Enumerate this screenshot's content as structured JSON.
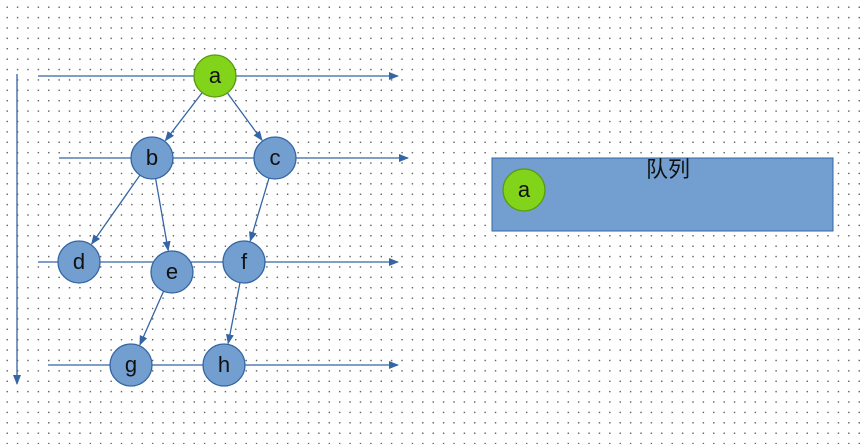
{
  "colors": {
    "node_fill": "#729fcf",
    "node_stroke": "#3465a4",
    "active_fill": "#81d41a",
    "active_stroke": "#5a9a0e",
    "line": "#3465a4",
    "queue_fill": "#729fcf",
    "queue_stroke": "#3465a4"
  },
  "tree": {
    "nodes": [
      {
        "id": "a",
        "label": "a",
        "active": true
      },
      {
        "id": "b",
        "label": "b",
        "active": false
      },
      {
        "id": "c",
        "label": "c",
        "active": false
      },
      {
        "id": "d",
        "label": "d",
        "active": false
      },
      {
        "id": "e",
        "label": "e",
        "active": false
      },
      {
        "id": "f",
        "label": "f",
        "active": false
      },
      {
        "id": "g",
        "label": "g",
        "active": false
      },
      {
        "id": "h",
        "label": "h",
        "active": false
      }
    ],
    "edges": [
      {
        "from": "a",
        "to": "b"
      },
      {
        "from": "a",
        "to": "c"
      },
      {
        "from": "b",
        "to": "d"
      },
      {
        "from": "b",
        "to": "e"
      },
      {
        "from": "c",
        "to": "f"
      },
      {
        "from": "e",
        "to": "g"
      },
      {
        "from": "f",
        "to": "h"
      }
    ],
    "level_count": 4
  },
  "queue": {
    "title": "队列",
    "items": [
      {
        "label": "a",
        "active": true
      }
    ]
  }
}
